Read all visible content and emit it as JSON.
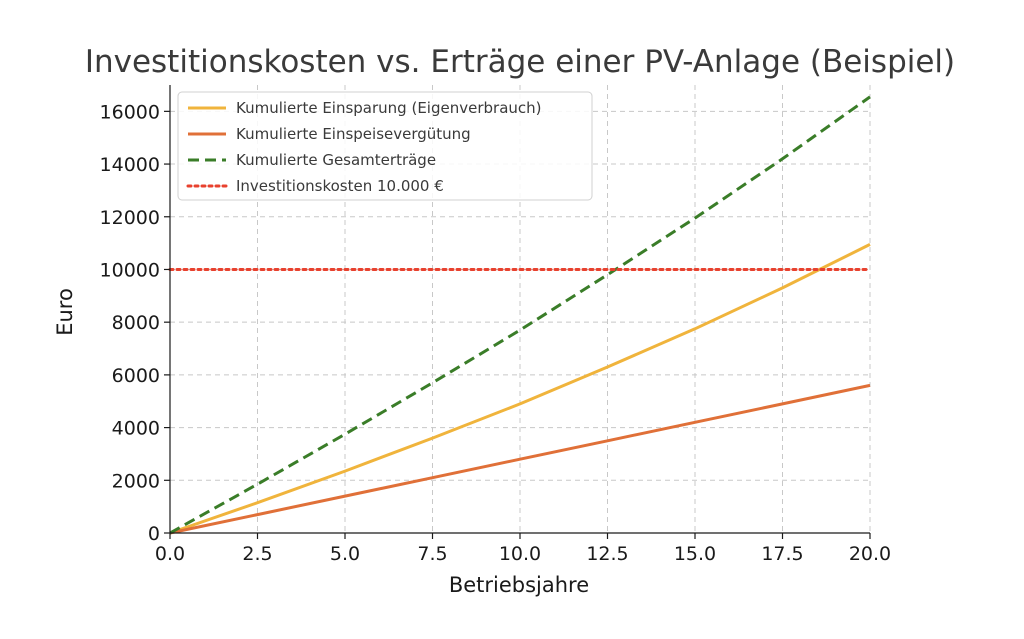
{
  "chart_data": {
    "type": "line",
    "title": "Investitionskosten vs. Erträge einer PV-Anlage (Beispiel)",
    "xlabel": "Betriebsjahre",
    "ylabel": "Euro",
    "xlim": [
      0,
      20
    ],
    "ylim": [
      0,
      17000
    ],
    "xticks": [
      "0.0",
      "2.5",
      "5.0",
      "7.5",
      "10.0",
      "12.5",
      "15.0",
      "17.5",
      "20.0"
    ],
    "yticks": [
      "0",
      "2000",
      "4000",
      "6000",
      "8000",
      "10000",
      "12000",
      "14000",
      "16000"
    ],
    "grid": true,
    "legend_position": "top-left",
    "x": [
      0,
      2.5,
      5,
      7.5,
      10,
      12.5,
      15,
      17.5,
      20
    ],
    "series": [
      {
        "name": "Kumulierte Einsparung (Eigenverbrauch)",
        "color": "#f0b43c",
        "style": "solid",
        "values": [
          0,
          1150,
          2350,
          3600,
          4900,
          6300,
          7750,
          9300,
          10950
        ]
      },
      {
        "name": "Kumulierte Einspeisevergütung",
        "color": "#e07038",
        "style": "solid",
        "values": [
          0,
          700,
          1400,
          2100,
          2800,
          3500,
          4200,
          4900,
          5600
        ]
      },
      {
        "name": "Kumulierte Gesamterträge",
        "color": "#3a7d28",
        "style": "dashed",
        "values": [
          0,
          1850,
          3750,
          5700,
          7700,
          9800,
          11950,
          14200,
          16550
        ]
      },
      {
        "name": "Investitionskosten 10.000 €",
        "color": "#e8412e",
        "style": "dotted",
        "values": [
          10000,
          10000,
          10000,
          10000,
          10000,
          10000,
          10000,
          10000,
          10000
        ]
      }
    ]
  }
}
